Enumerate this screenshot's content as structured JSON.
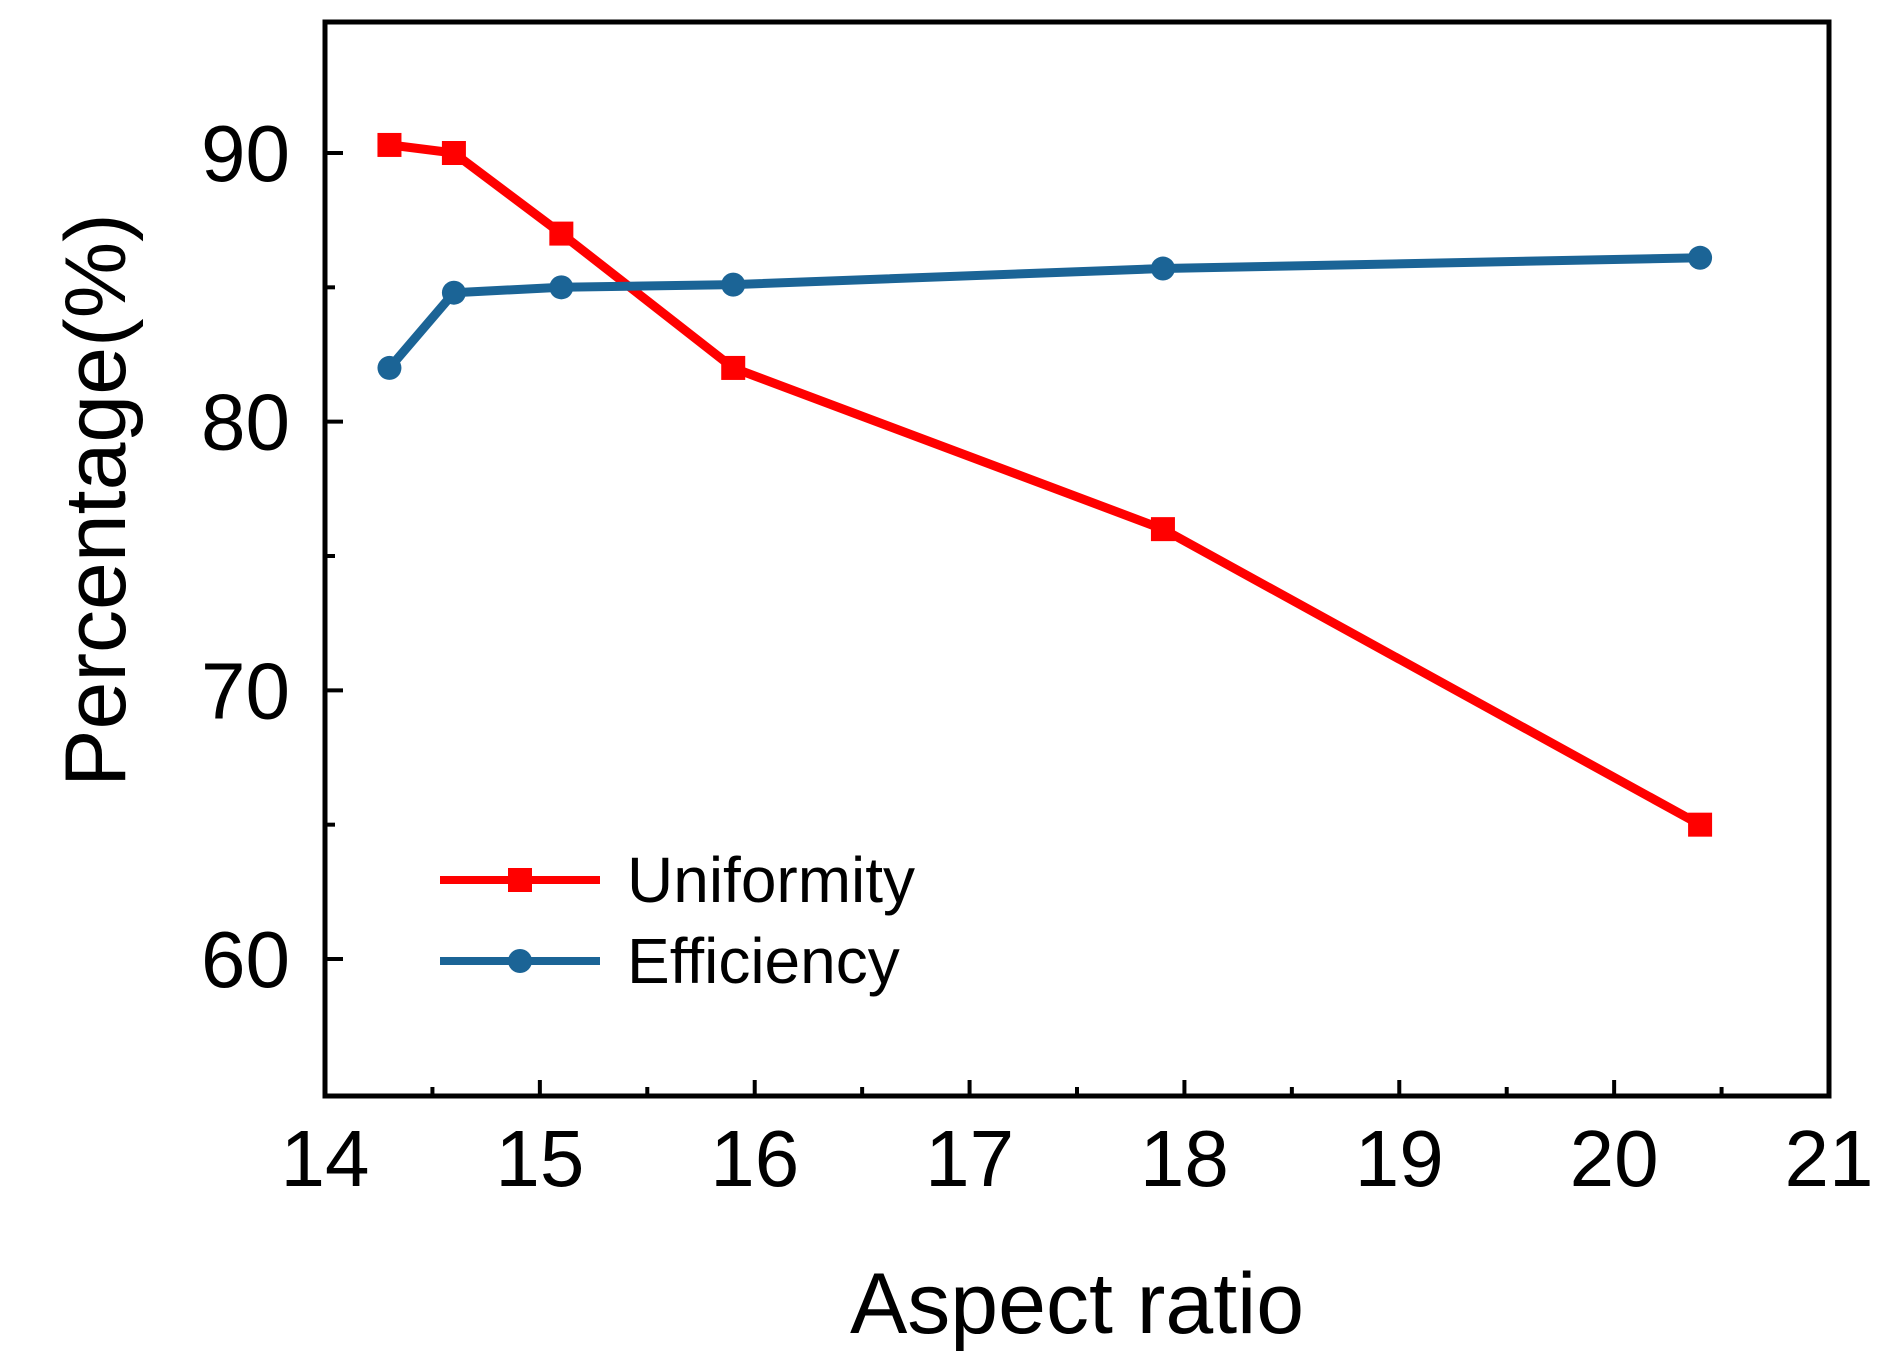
{
  "chart_data": {
    "type": "line",
    "title": "",
    "xlabel": "Aspect ratio",
    "ylabel": "Percentage(%)",
    "xlim": [
      14,
      21
    ],
    "ylim": [
      55,
      95
    ],
    "x_ticks": [
      14,
      15,
      16,
      17,
      18,
      19,
      20,
      21
    ],
    "x_tick_labels": [
      "14",
      "15",
      "16",
      "17",
      "18",
      "19",
      "20",
      "21"
    ],
    "y_ticks": [
      60,
      70,
      80,
      90
    ],
    "y_tick_labels": [
      "60",
      "70",
      "80",
      "90"
    ],
    "grid": false,
    "legend_position": "bottom-left",
    "series": [
      {
        "name": "Uniformity",
        "color": "#ff0000",
        "marker": "square",
        "x": [
          14.3,
          14.6,
          15.1,
          15.9,
          17.9,
          20.4
        ],
        "y": [
          90.3,
          90.0,
          87.0,
          82.0,
          76.0,
          65.0
        ]
      },
      {
        "name": "Efficiency",
        "color": "#1b6496",
        "marker": "circle",
        "x": [
          14.3,
          14.6,
          15.1,
          15.9,
          17.9,
          20.4
        ],
        "y": [
          82.0,
          84.8,
          85.0,
          85.1,
          85.7,
          86.1
        ]
      }
    ]
  }
}
